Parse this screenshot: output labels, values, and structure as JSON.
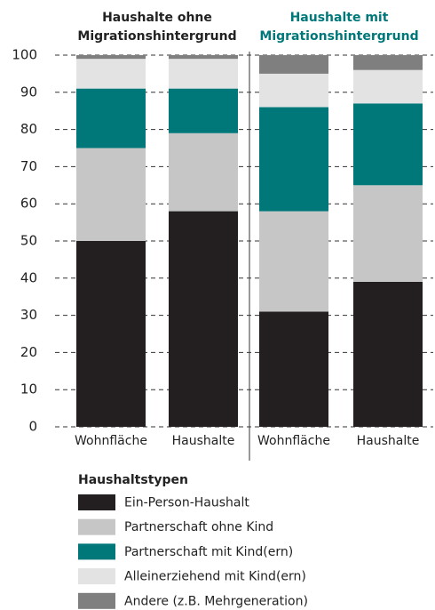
{
  "chart_data": {
    "type": "stacked_bar",
    "groups": [
      {
        "title_lines": [
          "Haushalte ohne",
          "Migrationshintergrund"
        ],
        "color": "#222222"
      },
      {
        "title_lines": [
          "Haushalte mit",
          "Migrationshintergrund"
        ],
        "color": "#00787a"
      }
    ],
    "categories": [
      "Wohnfläche",
      "Haushalte",
      "Wohnfläche",
      "Haushalte"
    ],
    "bar_group": [
      0,
      0,
      1,
      1
    ],
    "legend_title": "Haushaltstypen",
    "series": [
      {
        "name": "Ein-Person-Haushalt",
        "color": "#231f20",
        "values": [
          50,
          58,
          31,
          39
        ]
      },
      {
        "name": "Partnerschaft ohne Kind",
        "color": "#c6c6c6",
        "values": [
          25,
          21,
          27,
          26
        ]
      },
      {
        "name": "Partnerschaft mit Kind(ern)",
        "color": "#00787a",
        "values": [
          16,
          12,
          28,
          22
        ]
      },
      {
        "name": "Alleinerziehend mit Kind(ern)",
        "color": "#e3e3e4",
        "values": [
          8,
          8,
          9,
          9
        ]
      },
      {
        "name": "Andere (z.B. Mehrgeneration)",
        "color": "#7f7f7f",
        "values": [
          1,
          1,
          5,
          4
        ]
      }
    ],
    "ylim": [
      0,
      100
    ],
    "yticks": [
      0,
      10,
      20,
      30,
      40,
      50,
      60,
      70,
      80,
      90,
      100
    ],
    "grid": true
  }
}
